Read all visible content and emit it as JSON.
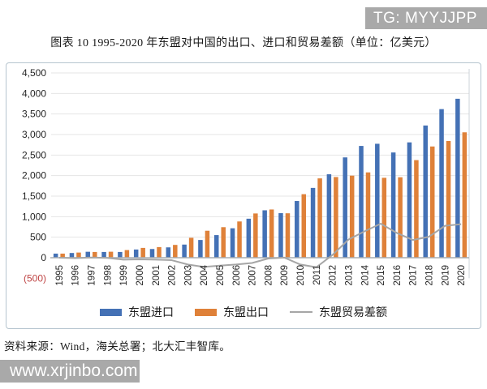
{
  "watermarks": {
    "telegram": "TG: MYYJJPP",
    "site": "www.xrjinbo.com"
  },
  "title": "图表  10  1995-2020 年东盟对中国的出口、进口和贸易差额（单位：亿美元）",
  "source": "资料来源：Wind，海关总署；北大汇丰智库。",
  "colors": {
    "imports_bar": "#4471b5",
    "exports_bar": "#df8139",
    "balance_line": "#a6a6a6",
    "axis_line": "#a8adb2",
    "gridline": "#e4e4e4",
    "negative_tick": "#bf4545",
    "tick_text": "#262626",
    "watermark_bg": "#a9a9a9"
  },
  "legend": [
    {
      "label": "东盟进口",
      "type": "bar",
      "color": "#4471b5"
    },
    {
      "label": "东盟出口",
      "type": "bar",
      "color": "#df8139"
    },
    {
      "label": "东盟贸易差额",
      "type": "line",
      "color": "#a6a6a6"
    }
  ],
  "chart_data": {
    "type": "bar",
    "title": "1995-2020 年东盟对中国的出口、进口和贸易差额",
    "unit": "亿美元",
    "categories": [
      "1995",
      "1996",
      "1997",
      "1998",
      "1999",
      "2000",
      "2001",
      "2002",
      "2003",
      "2004",
      "2005",
      "2006",
      "2007",
      "2008",
      "2009",
      "2010",
      "2011",
      "2012",
      "2013",
      "2014",
      "2015",
      "2016",
      "2017",
      "2018",
      "2019",
      "2020"
    ],
    "series": [
      {
        "name": "东盟进口",
        "type": "bar",
        "color": "#4471b5",
        "values": [
          100,
          115,
          145,
          140,
          140,
          200,
          212,
          252,
          320,
          432,
          551,
          717,
          950,
          1155,
          1085,
          1381,
          1700,
          2032,
          2443,
          2722,
          2775,
          2563,
          2809,
          3220,
          3619,
          3871
        ]
      },
      {
        "name": "东盟出口",
        "type": "bar",
        "color": "#df8139",
        "values": [
          100,
          126,
          140,
          146,
          186,
          239,
          259,
          312,
          485,
          657,
          744,
          883,
          1078,
          1175,
          1082,
          1547,
          1932,
          1965,
          1999,
          2078,
          1946,
          1959,
          2377,
          2709,
          2842,
          3054
        ]
      },
      {
        "name": "东盟贸易差额",
        "type": "line",
        "color": "#a6a6a6",
        "values": [
          0,
          -11,
          5,
          -6,
          -46,
          -39,
          -47,
          -60,
          -165,
          -225,
          -193,
          -166,
          -128,
          -20,
          3,
          -166,
          -232,
          67,
          444,
          644,
          829,
          604,
          432,
          511,
          777,
          817
        ]
      }
    ],
    "ylim": [
      -500,
      4500
    ],
    "ytick_step": 500,
    "yticks": [
      {
        "value": 4500,
        "label": "4,500"
      },
      {
        "value": 4000,
        "label": "4,000"
      },
      {
        "value": 3500,
        "label": "3,500"
      },
      {
        "value": 3000,
        "label": "3,000"
      },
      {
        "value": 2500,
        "label": "2,500"
      },
      {
        "value": 2000,
        "label": "2,000"
      },
      {
        "value": 1500,
        "label": "1,500"
      },
      {
        "value": 1000,
        "label": "1,000"
      },
      {
        "value": 500,
        "label": "500"
      },
      {
        "value": 0,
        "label": "0"
      },
      {
        "value": -500,
        "label": "(500)",
        "negative": true
      }
    ],
    "grid": true,
    "legend_position": "bottom",
    "x_label_rotation": 90
  }
}
